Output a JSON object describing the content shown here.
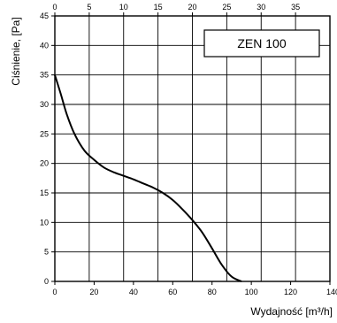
{
  "chart_data": {
    "type": "line",
    "ylabel": "Ciśnienie, [Pa]",
    "xlabel": "Wydajność [m³/h]",
    "xlim": [
      0,
      140
    ],
    "ylim": [
      0,
      45
    ],
    "x_ticks": [
      0,
      20,
      40,
      60,
      80,
      100,
      120,
      140
    ],
    "x_tick_labels": [
      "0",
      "20",
      "40",
      "60",
      "80",
      "100",
      "120",
      "140"
    ],
    "y_ticks": [
      0,
      5,
      10,
      15,
      20,
      25,
      30,
      35,
      40,
      45
    ],
    "y_tick_labels": [
      "0",
      "5",
      "10",
      "15",
      "20",
      "25",
      "30",
      "35",
      "40",
      "45"
    ],
    "x2lim": [
      0,
      40
    ],
    "x2_ticks": [
      0,
      5,
      10,
      15,
      20,
      25,
      30,
      35
    ],
    "x2_tick_labels": [
      "0",
      "5",
      "10",
      "15",
      "20",
      "25",
      "30",
      "35"
    ],
    "grid": true,
    "legend_placement": "top-right",
    "series": [
      {
        "name": "ZEN 100",
        "color": "#000000",
        "x": [
          0,
          3,
          6,
          10,
          15,
          20,
          25,
          30,
          35,
          40,
          45,
          50,
          55,
          60,
          65,
          70,
          75,
          80,
          85,
          90,
          95
        ],
        "y": [
          35,
          31.8,
          28.4,
          25,
          22.2,
          20.6,
          19.3,
          18.5,
          17.9,
          17.3,
          16.6,
          15.9,
          15.0,
          13.8,
          12.2,
          10.4,
          8.3,
          5.6,
          2.8,
          0.8,
          0
        ]
      }
    ]
  }
}
